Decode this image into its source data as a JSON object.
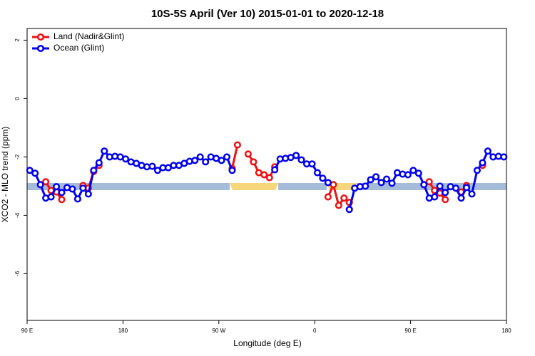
{
  "chart_data": {
    "type": "line",
    "title": "10S-5S April (Ver 10)   2015-01-01 to 2020-12-18",
    "xlabel": "Longitude (deg E)",
    "ylabel": "XCO2 - MLO trend (ppm)",
    "x": [
      92.5,
      97.5,
      102.5,
      107.5,
      112.5,
      117.5,
      122.5,
      127.5,
      132.5,
      137.5,
      142.5,
      147.5,
      152.5,
      157.5,
      162.5,
      167.5,
      172.5,
      177.5,
      182.5,
      187.5,
      192.5,
      197.5,
      202.5,
      207.5,
      212.5,
      217.5,
      222.5,
      227.5,
      232.5,
      237.5,
      242.5,
      247.5,
      252.5,
      257.5,
      262.5,
      267.5,
      272.5,
      277.5,
      282.5,
      287.5,
      292.5,
      297.5,
      302.5,
      307.5,
      312.5,
      317.5,
      322.5,
      327.5,
      332.5,
      337.5,
      342.5,
      347.5,
      352.5,
      357.5,
      362.5,
      367.5,
      372.5,
      377.5,
      382.5,
      387.5,
      392.5,
      397.5,
      402.5,
      407.5,
      412.5,
      417.5,
      422.5,
      427.5,
      432.5,
      437.5,
      442.5,
      447.5,
      452.5,
      457.5,
      462.5,
      467.5,
      472.5,
      477.5,
      482.5,
      487.5,
      492.5,
      497.5,
      502.5,
      507.5,
      512.5,
      517.5,
      522.5,
      527.5,
      532.5,
      537.5
    ],
    "series": [
      {
        "name": "Land (Nadir&Glint)",
        "color": "#ee1111",
        "values": [
          null,
          null,
          null,
          -2.85,
          -3.15,
          -3.2,
          -3.46,
          null,
          null,
          null,
          -2.98,
          -3.07,
          -2.5,
          -2.29,
          null,
          null,
          null,
          null,
          null,
          null,
          null,
          null,
          null,
          null,
          null,
          null,
          null,
          null,
          null,
          null,
          null,
          null,
          null,
          null,
          null,
          null,
          null,
          null,
          -2.39,
          -1.59,
          null,
          -1.9,
          -2.17,
          -2.54,
          -2.61,
          -2.71,
          -2.34,
          null,
          null,
          null,
          null,
          null,
          null,
          null,
          null,
          null,
          -3.37,
          -2.95,
          -3.66,
          -3.41,
          -3.56,
          null,
          null,
          null,
          null,
          null,
          null,
          null,
          null,
          null,
          null,
          null,
          null,
          null,
          null,
          -2.85,
          -3.15,
          -3.24,
          -3.46,
          null,
          null,
          -3.2,
          -2.98,
          null,
          null,
          -2.29,
          null,
          null,
          null,
          null
        ]
      },
      {
        "name": "Ocean (Glint)",
        "color": "#0000ee",
        "values": [
          -2.46,
          -2.56,
          -2.95,
          -3.41,
          -3.37,
          -3.02,
          -3.22,
          -3.05,
          -3.1,
          -3.44,
          -3.07,
          -3.27,
          -2.46,
          -2.2,
          -1.8,
          -2.0,
          -1.98,
          -2.0,
          -2.07,
          -2.17,
          -2.22,
          -2.29,
          -2.34,
          -2.32,
          -2.46,
          -2.37,
          -2.37,
          -2.29,
          -2.29,
          -2.22,
          -2.15,
          -2.12,
          -2.0,
          -2.17,
          -2.0,
          -2.05,
          -2.12,
          -2.0,
          -2.46,
          null,
          null,
          null,
          null,
          null,
          null,
          null,
          -2.44,
          -2.07,
          -2.05,
          -2.02,
          -1.95,
          -2.1,
          -2.24,
          -2.24,
          -2.54,
          -2.73,
          -2.88,
          null,
          null,
          null,
          -3.8,
          -3.07,
          -3.02,
          -3.0,
          -2.78,
          -2.68,
          -2.88,
          -2.76,
          -2.9,
          -2.54,
          -2.59,
          -2.61,
          -2.46,
          -2.56,
          -2.95,
          -3.41,
          -3.37,
          -3.0,
          -3.22,
          -3.02,
          -3.07,
          -3.41,
          -3.05,
          -3.27,
          -2.46,
          -2.2,
          -1.8,
          -2.0,
          -1.98,
          -2.0
        ]
      }
    ],
    "xlim": [
      90,
      540
    ],
    "xticks": [
      {
        "value": 90,
        "label": "90 E"
      },
      180,
      {
        "value": 270,
        "label": "90 W"
      },
      {
        "value": 360,
        "label": "0"
      },
      {
        "value": 450,
        "label": "90 E"
      },
      {
        "value": 540,
        "label": "180"
      }
    ],
    "ylim": [
      -7.6,
      2.4
    ],
    "yticks": [
      2,
      0,
      -2,
      -4,
      -6
    ],
    "legend": "top-left"
  }
}
